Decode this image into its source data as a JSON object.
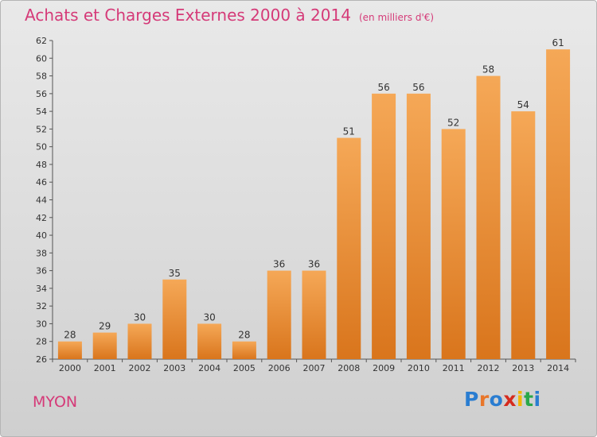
{
  "title": "Achats et Charges Externes 2000 à 2014",
  "subtitle": "(en milliers d'€)",
  "city": "MYON",
  "logo": {
    "letters": [
      "P",
      "r",
      "o",
      "x",
      "i",
      "t",
      "i"
    ],
    "colors": [
      "#2a7dd1",
      "#e8762a",
      "#2a7dd1",
      "#d52b1e",
      "#f2b600",
      "#2aa84a",
      "#2a7dd1"
    ]
  },
  "colors": {
    "bar": "#f0922e",
    "bar_top": "#f5a857",
    "bar_bottom": "#d9751c",
    "text": "#333333",
    "accent": "#d53a78"
  },
  "chart_data": {
    "type": "bar",
    "title": "Achats et Charges Externes 2000 à 2014",
    "subtitle": "(en milliers d'€)",
    "categories": [
      "2000",
      "2001",
      "2002",
      "2003",
      "2004",
      "2005",
      "2006",
      "2007",
      "2008",
      "2009",
      "2010",
      "2011",
      "2012",
      "2013",
      "2014"
    ],
    "values": [
      28,
      29,
      30,
      35,
      30,
      28,
      36,
      36,
      51,
      56,
      56,
      52,
      58,
      54,
      61
    ],
    "ylim": [
      26,
      62
    ],
    "yticks": [
      26,
      28,
      30,
      32,
      34,
      36,
      38,
      40,
      42,
      44,
      46,
      48,
      50,
      52,
      54,
      56,
      58,
      60,
      62
    ],
    "grid": false,
    "data_labels": true
  }
}
